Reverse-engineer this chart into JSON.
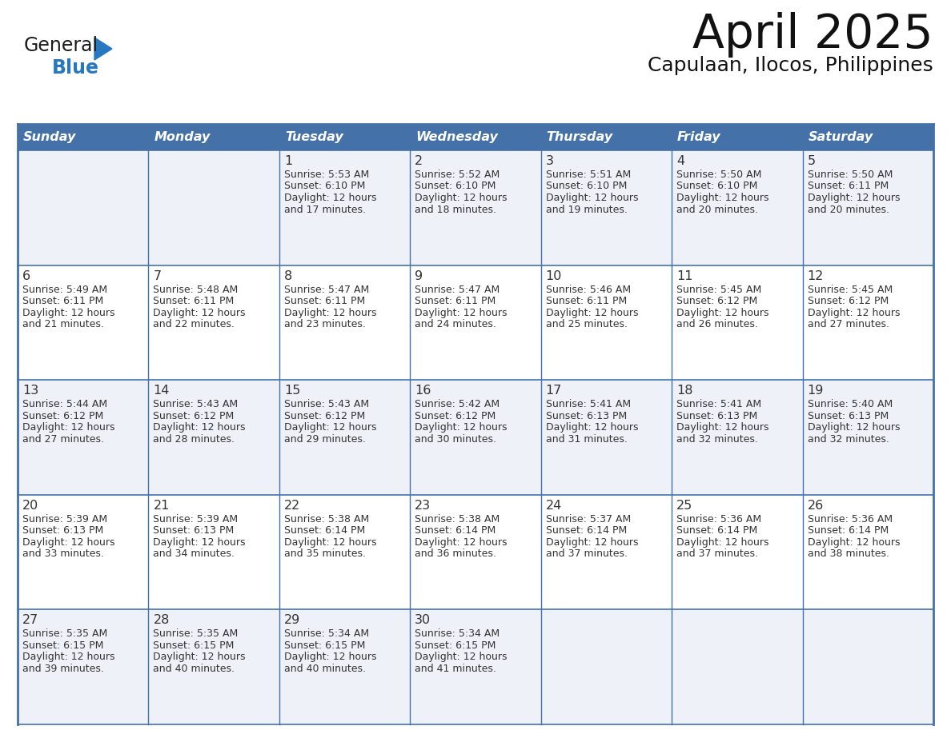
{
  "title": "April 2025",
  "subtitle": "Capulaan, Ilocos, Philippines",
  "header_bg_color": "#4472a8",
  "header_text_color": "#FFFFFF",
  "row_bg_odd": "#eef1f7",
  "row_bg_even": "#FFFFFF",
  "day_number_color": "#333333",
  "cell_text_color": "#333333",
  "border_color": "#4472a8",
  "days_of_week": [
    "Sunday",
    "Monday",
    "Tuesday",
    "Wednesday",
    "Thursday",
    "Friday",
    "Saturday"
  ],
  "calendar_data": [
    [
      {
        "day": "",
        "sunrise": "",
        "sunset": "",
        "daylight": ""
      },
      {
        "day": "",
        "sunrise": "",
        "sunset": "",
        "daylight": ""
      },
      {
        "day": "1",
        "sunrise": "5:53 AM",
        "sunset": "6:10 PM",
        "daylight": "12 hours and 17 minutes."
      },
      {
        "day": "2",
        "sunrise": "5:52 AM",
        "sunset": "6:10 PM",
        "daylight": "12 hours and 18 minutes."
      },
      {
        "day": "3",
        "sunrise": "5:51 AM",
        "sunset": "6:10 PM",
        "daylight": "12 hours and 19 minutes."
      },
      {
        "day": "4",
        "sunrise": "5:50 AM",
        "sunset": "6:10 PM",
        "daylight": "12 hours and 20 minutes."
      },
      {
        "day": "5",
        "sunrise": "5:50 AM",
        "sunset": "6:11 PM",
        "daylight": "12 hours and 20 minutes."
      }
    ],
    [
      {
        "day": "6",
        "sunrise": "5:49 AM",
        "sunset": "6:11 PM",
        "daylight": "12 hours and 21 minutes."
      },
      {
        "day": "7",
        "sunrise": "5:48 AM",
        "sunset": "6:11 PM",
        "daylight": "12 hours and 22 minutes."
      },
      {
        "day": "8",
        "sunrise": "5:47 AM",
        "sunset": "6:11 PM",
        "daylight": "12 hours and 23 minutes."
      },
      {
        "day": "9",
        "sunrise": "5:47 AM",
        "sunset": "6:11 PM",
        "daylight": "12 hours and 24 minutes."
      },
      {
        "day": "10",
        "sunrise": "5:46 AM",
        "sunset": "6:11 PM",
        "daylight": "12 hours and 25 minutes."
      },
      {
        "day": "11",
        "sunrise": "5:45 AM",
        "sunset": "6:12 PM",
        "daylight": "12 hours and 26 minutes."
      },
      {
        "day": "12",
        "sunrise": "5:45 AM",
        "sunset": "6:12 PM",
        "daylight": "12 hours and 27 minutes."
      }
    ],
    [
      {
        "day": "13",
        "sunrise": "5:44 AM",
        "sunset": "6:12 PM",
        "daylight": "12 hours and 27 minutes."
      },
      {
        "day": "14",
        "sunrise": "5:43 AM",
        "sunset": "6:12 PM",
        "daylight": "12 hours and 28 minutes."
      },
      {
        "day": "15",
        "sunrise": "5:43 AM",
        "sunset": "6:12 PM",
        "daylight": "12 hours and 29 minutes."
      },
      {
        "day": "16",
        "sunrise": "5:42 AM",
        "sunset": "6:12 PM",
        "daylight": "12 hours and 30 minutes."
      },
      {
        "day": "17",
        "sunrise": "5:41 AM",
        "sunset": "6:13 PM",
        "daylight": "12 hours and 31 minutes."
      },
      {
        "day": "18",
        "sunrise": "5:41 AM",
        "sunset": "6:13 PM",
        "daylight": "12 hours and 32 minutes."
      },
      {
        "day": "19",
        "sunrise": "5:40 AM",
        "sunset": "6:13 PM",
        "daylight": "12 hours and 32 minutes."
      }
    ],
    [
      {
        "day": "20",
        "sunrise": "5:39 AM",
        "sunset": "6:13 PM",
        "daylight": "12 hours and 33 minutes."
      },
      {
        "day": "21",
        "sunrise": "5:39 AM",
        "sunset": "6:13 PM",
        "daylight": "12 hours and 34 minutes."
      },
      {
        "day": "22",
        "sunrise": "5:38 AM",
        "sunset": "6:14 PM",
        "daylight": "12 hours and 35 minutes."
      },
      {
        "day": "23",
        "sunrise": "5:38 AM",
        "sunset": "6:14 PM",
        "daylight": "12 hours and 36 minutes."
      },
      {
        "day": "24",
        "sunrise": "5:37 AM",
        "sunset": "6:14 PM",
        "daylight": "12 hours and 37 minutes."
      },
      {
        "day": "25",
        "sunrise": "5:36 AM",
        "sunset": "6:14 PM",
        "daylight": "12 hours and 37 minutes."
      },
      {
        "day": "26",
        "sunrise": "5:36 AM",
        "sunset": "6:14 PM",
        "daylight": "12 hours and 38 minutes."
      }
    ],
    [
      {
        "day": "27",
        "sunrise": "5:35 AM",
        "sunset": "6:15 PM",
        "daylight": "12 hours and 39 minutes."
      },
      {
        "day": "28",
        "sunrise": "5:35 AM",
        "sunset": "6:15 PM",
        "daylight": "12 hours and 40 minutes."
      },
      {
        "day": "29",
        "sunrise": "5:34 AM",
        "sunset": "6:15 PM",
        "daylight": "12 hours and 40 minutes."
      },
      {
        "day": "30",
        "sunrise": "5:34 AM",
        "sunset": "6:15 PM",
        "daylight": "12 hours and 41 minutes."
      },
      {
        "day": "",
        "sunrise": "",
        "sunset": "",
        "daylight": ""
      },
      {
        "day": "",
        "sunrise": "",
        "sunset": "",
        "daylight": ""
      },
      {
        "day": "",
        "sunrise": "",
        "sunset": "",
        "daylight": ""
      }
    ]
  ],
  "logo_text1": "General",
  "logo_text2": "Blue",
  "logo_text1_color": "#1A1A1A",
  "logo_text2_color": "#2878c0",
  "logo_triangle_color": "#2878c0",
  "fig_width": 11.88,
  "fig_height": 9.18,
  "dpi": 100
}
